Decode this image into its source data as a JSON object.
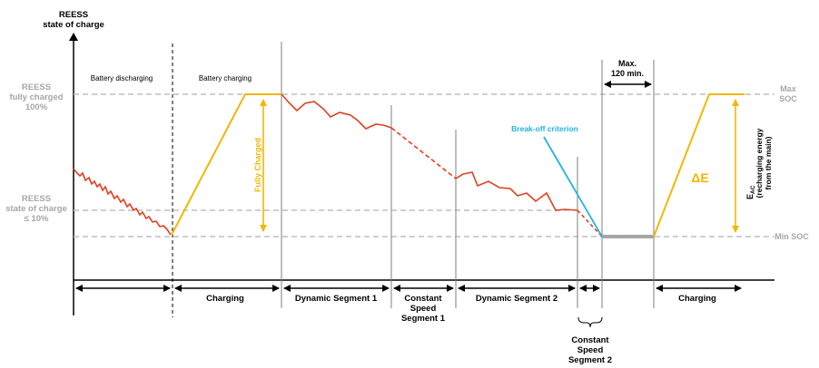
{
  "axis": {
    "y_title_line1": "REESS",
    "y_title_line2": "state of charge"
  },
  "levels": {
    "full_line1": "REESS",
    "full_line2": "fully charged",
    "full_line3": "100%",
    "low_line1": "REESS",
    "low_line2": "state of charge",
    "low_line3": "≤ 10%",
    "max_soc_line1": "Max",
    "max_soc_line2": "SOC",
    "min_soc": "Min SOC"
  },
  "phases": {
    "discharging": "Battery discharging",
    "charging": "Battery charging"
  },
  "annotations": {
    "fully_charged": "Fully Charged",
    "break_off": "Break-off criterion",
    "max_time_line1": "Max.",
    "max_time_line2": "120 min.",
    "delta_e": "ΔE",
    "e_ac_main": "E",
    "e_ac_sub": "AC",
    "e_ac_line2": "(recharging energy",
    "e_ac_line3": "from the main)"
  },
  "segments": {
    "charging_1": "Charging",
    "dynamic_1": "Dynamic Segment 1",
    "constant_1_line1": "Constant",
    "constant_1_line2": "Speed",
    "constant_1_line3": "Segment 1",
    "dynamic_2": "Dynamic Segment 2",
    "constant_2_line1": "Constant",
    "constant_2_line2": "Speed",
    "constant_2_line3": "Segment 2",
    "charging_2": "Charging"
  },
  "colors": {
    "discharge": "#e2401f",
    "charge": "#f2b705",
    "break_off": "#22b3e6",
    "dashed_level": "#bfbfbf",
    "gray_text": "#a6a6a6"
  }
}
